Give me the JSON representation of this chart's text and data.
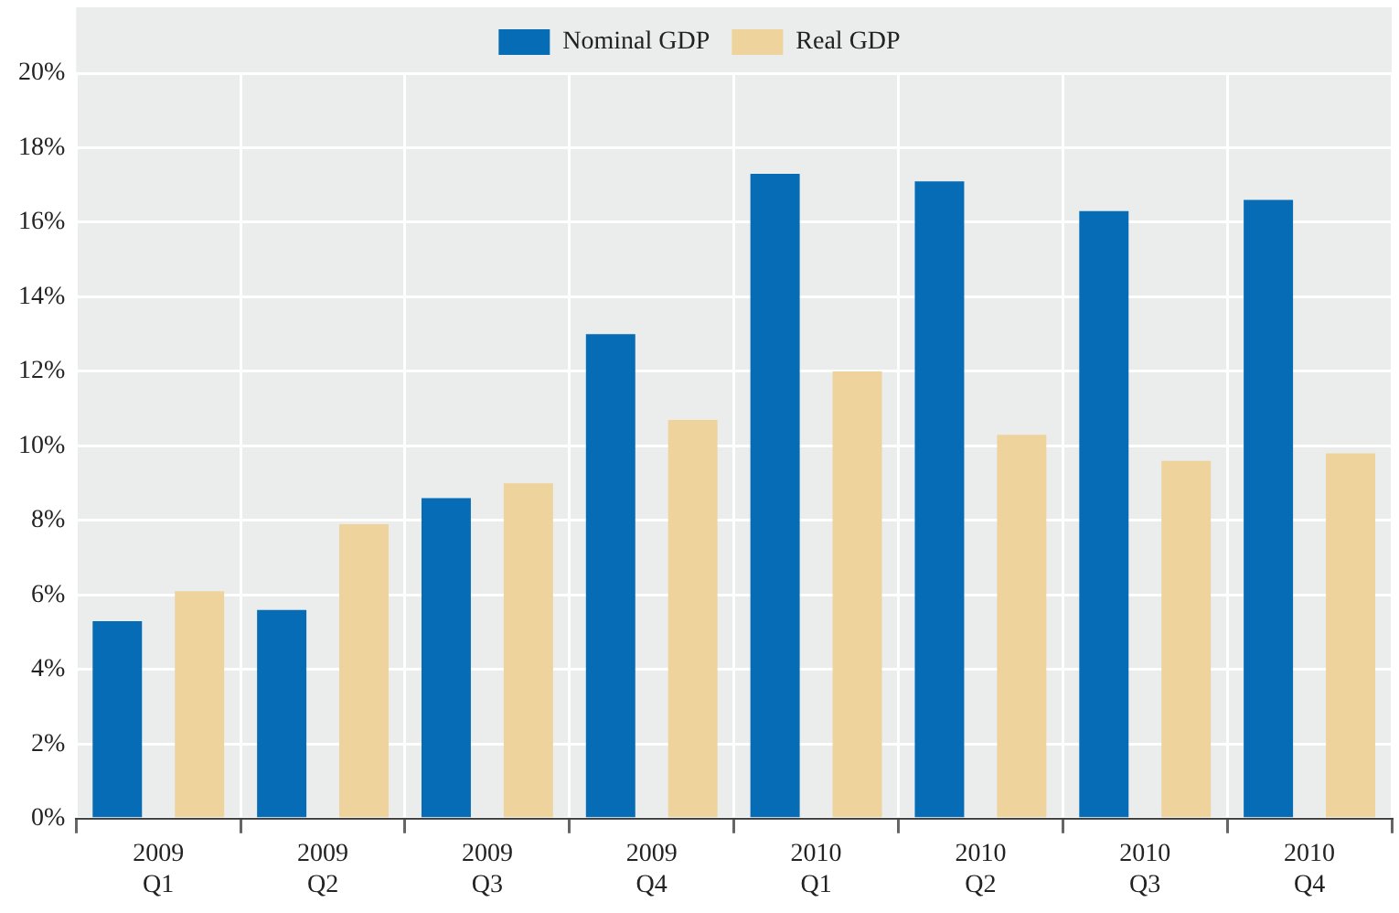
{
  "chart_data": {
    "type": "bar",
    "categories": [
      "2009\nQ1",
      "2009\nQ2",
      "2009\nQ3",
      "2009\nQ4",
      "2010\nQ1",
      "2010\nQ2",
      "2010\nQ3",
      "2010\nQ4"
    ],
    "series": [
      {
        "name": "Nominal GDP",
        "color": "#066cb5",
        "values": [
          5.3,
          5.6,
          8.6,
          13.0,
          17.3,
          17.1,
          16.3,
          16.6
        ]
      },
      {
        "name": "Real GDP",
        "color": "#efd39d",
        "values": [
          6.1,
          7.9,
          9.0,
          10.7,
          12.0,
          10.3,
          9.6,
          9.8
        ]
      }
    ],
    "ylim": [
      0,
      20
    ],
    "yticks": [
      {
        "value": 0,
        "label": "0%"
      },
      {
        "value": 2,
        "label": "2%"
      },
      {
        "value": 4,
        "label": "4%"
      },
      {
        "value": 6,
        "label": "6%"
      },
      {
        "value": 8,
        "label": "8%"
      },
      {
        "value": 10,
        "label": "10%"
      },
      {
        "value": 12,
        "label": "12%"
      },
      {
        "value": 14,
        "label": "14%"
      },
      {
        "value": 16,
        "label": "16%"
      },
      {
        "value": 18,
        "label": "18%"
      },
      {
        "value": 20,
        "label": "20%"
      }
    ],
    "grid": true,
    "legend": "top"
  }
}
